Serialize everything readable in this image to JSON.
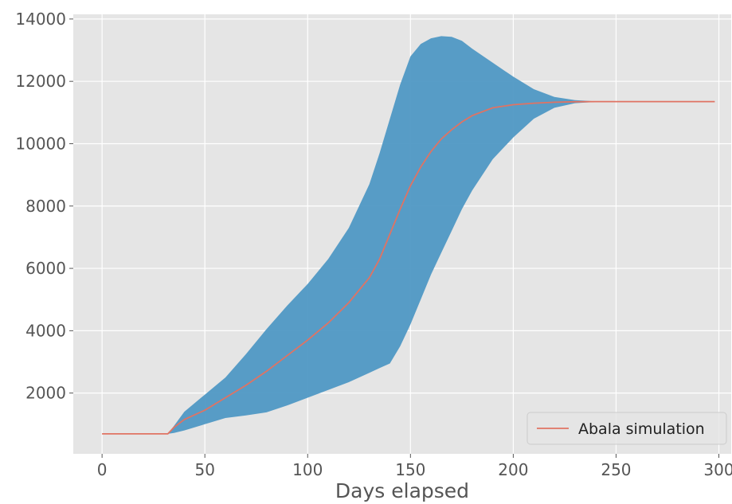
{
  "chart_data": {
    "type": "area",
    "title": "",
    "xlabel": "Days elapsed",
    "ylabel": "",
    "xlim": [
      -14,
      306
    ],
    "ylim": [
      50,
      14150
    ],
    "xticks": [
      0,
      50,
      100,
      150,
      200,
      250,
      300
    ],
    "yticks": [
      2000,
      4000,
      6000,
      8000,
      10000,
      12000,
      14000
    ],
    "grid": true,
    "legend_position": "bottom-right",
    "band": {
      "color": "#4f98c4",
      "x": [
        0,
        32,
        35,
        40,
        50,
        60,
        70,
        80,
        90,
        100,
        110,
        120,
        130,
        135,
        140,
        145,
        150,
        155,
        160,
        165,
        170,
        175,
        180,
        190,
        200,
        210,
        220,
        230,
        240,
        250,
        260,
        270,
        280,
        290,
        298
      ],
      "upper": [
        690,
        690,
        950,
        1400,
        1950,
        2500,
        3250,
        4050,
        4800,
        5500,
        6300,
        7300,
        8700,
        9700,
        10800,
        11900,
        12800,
        13200,
        13380,
        13450,
        13430,
        13300,
        13050,
        12600,
        12150,
        11750,
        11500,
        11400,
        11360,
        11350,
        11350,
        11350,
        11350,
        11350,
        11350
      ],
      "lower": [
        690,
        690,
        720,
        800,
        1000,
        1200,
        1280,
        1380,
        1600,
        1850,
        2100,
        2350,
        2650,
        2800,
        2950,
        3500,
        4200,
        5000,
        5800,
        6500,
        7200,
        7900,
        8500,
        9500,
        10200,
        10800,
        11150,
        11300,
        11340,
        11350,
        11350,
        11350,
        11350,
        11350,
        11350
      ]
    },
    "series": [
      {
        "name": "Abala simulation",
        "color": "#e07363",
        "x": [
          0,
          32,
          35,
          40,
          50,
          60,
          70,
          80,
          90,
          100,
          110,
          120,
          130,
          135,
          140,
          145,
          150,
          155,
          160,
          165,
          170,
          175,
          180,
          190,
          200,
          210,
          220,
          230,
          240,
          250,
          260,
          270,
          280,
          290,
          298
        ],
        "values": [
          690,
          690,
          900,
          1150,
          1450,
          1850,
          2250,
          2700,
          3200,
          3700,
          4250,
          4900,
          5700,
          6300,
          7100,
          7900,
          8650,
          9250,
          9750,
          10150,
          10450,
          10700,
          10900,
          11150,
          11250,
          11300,
          11330,
          11345,
          11350,
          11350,
          11350,
          11350,
          11350,
          11350,
          11350
        ]
      }
    ]
  }
}
